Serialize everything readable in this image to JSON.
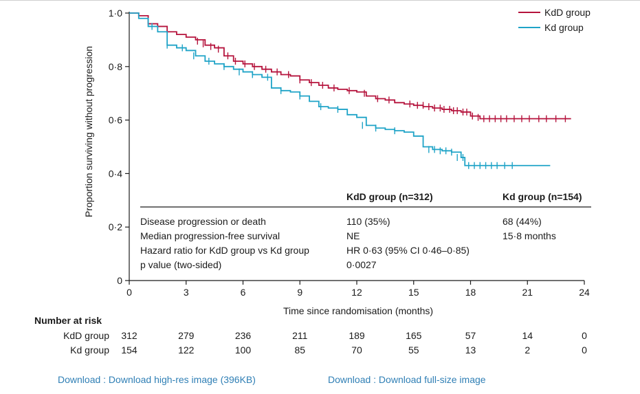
{
  "chart_data": {
    "type": "line",
    "xlabel": "Time since randomisation (months)",
    "ylabel": "Proportion surviving without progression",
    "xlim": [
      0,
      24
    ],
    "ylim": [
      0,
      1.0
    ],
    "xticks": [
      0,
      3,
      6,
      9,
      12,
      15,
      18,
      21,
      24
    ],
    "xtick_labels": [
      "0",
      "3",
      "6",
      "9",
      "12",
      "15",
      "18",
      "21",
      "24"
    ],
    "yticks": [
      0,
      0.2,
      0.4,
      0.6,
      0.8,
      1.0
    ],
    "ytick_labels": [
      "0",
      "0·2",
      "0·4",
      "0·6",
      "0·8",
      "1·0"
    ],
    "grid": false,
    "legend_position": "top-right",
    "series": [
      {
        "name": "KdD group",
        "color": "#b5133c",
        "x": [
          0,
          0.5,
          1.0,
          1.5,
          2.0,
          2.5,
          3.0,
          3.5,
          4.0,
          4.5,
          5.0,
          5.5,
          6.0,
          6.5,
          7.0,
          7.5,
          8.0,
          8.5,
          9.0,
          9.5,
          10.0,
          10.5,
          11.0,
          11.5,
          12.0,
          12.5,
          13.0,
          13.5,
          14.0,
          14.5,
          15.0,
          15.5,
          16.0,
          16.5,
          17.0,
          17.5,
          18.0,
          18.5,
          19.0,
          20.0,
          21.0,
          22.0,
          23.0,
          23.3
        ],
        "y": [
          1.0,
          0.99,
          0.96,
          0.95,
          0.93,
          0.92,
          0.91,
          0.9,
          0.88,
          0.87,
          0.84,
          0.82,
          0.81,
          0.8,
          0.79,
          0.78,
          0.77,
          0.765,
          0.75,
          0.74,
          0.73,
          0.72,
          0.715,
          0.71,
          0.705,
          0.69,
          0.68,
          0.675,
          0.665,
          0.66,
          0.655,
          0.65,
          0.645,
          0.64,
          0.635,
          0.63,
          0.615,
          0.605,
          0.605,
          0.605,
          0.605,
          0.605,
          0.605,
          0.605
        ],
        "censor_x": [
          3.6,
          3.9,
          4.3,
          4.7,
          5.2,
          5.6,
          6.1,
          6.6,
          7.2,
          7.8,
          8.4,
          9.0,
          9.6,
          10.2,
          10.8,
          11.6,
          12.4,
          13.1,
          13.7,
          14.8,
          15.2,
          15.5,
          15.8,
          16.1,
          16.4,
          16.6,
          16.9,
          17.1,
          17.3,
          17.6,
          17.8,
          18.1,
          18.4,
          18.7,
          19.0,
          19.3,
          19.6,
          19.9,
          20.3,
          20.7,
          21.1,
          21.6,
          22.0,
          22.5,
          23.0
        ],
        "censor_y": [
          0.895,
          0.885,
          0.875,
          0.865,
          0.84,
          0.82,
          0.81,
          0.8,
          0.79,
          0.78,
          0.77,
          0.75,
          0.74,
          0.73,
          0.72,
          0.71,
          0.7,
          0.68,
          0.675,
          0.66,
          0.655,
          0.655,
          0.65,
          0.645,
          0.645,
          0.64,
          0.64,
          0.635,
          0.635,
          0.63,
          0.63,
          0.615,
          0.61,
          0.605,
          0.605,
          0.605,
          0.605,
          0.605,
          0.605,
          0.605,
          0.605,
          0.605,
          0.605,
          0.605,
          0.605
        ]
      },
      {
        "name": "Kd group",
        "color": "#1ea3c7",
        "x": [
          0,
          0.5,
          1.0,
          1.5,
          2.0,
          2.5,
          3.0,
          3.5,
          4.0,
          4.5,
          5.0,
          5.5,
          6.0,
          6.5,
          7.0,
          7.5,
          8.0,
          8.5,
          9.0,
          9.5,
          10.0,
          10.5,
          11.0,
          11.5,
          12.0,
          12.5,
          13.0,
          13.5,
          14.0,
          14.5,
          15.0,
          15.5,
          16.0,
          16.5,
          17.0,
          17.5,
          17.7,
          18.0,
          19.0,
          20.0,
          21.0,
          22.2
        ],
        "y": [
          1.0,
          0.98,
          0.95,
          0.93,
          0.88,
          0.87,
          0.86,
          0.84,
          0.82,
          0.81,
          0.8,
          0.79,
          0.78,
          0.77,
          0.76,
          0.72,
          0.71,
          0.705,
          0.69,
          0.67,
          0.65,
          0.645,
          0.64,
          0.62,
          0.61,
          0.58,
          0.57,
          0.565,
          0.56,
          0.555,
          0.54,
          0.5,
          0.49,
          0.485,
          0.48,
          0.46,
          0.43,
          0.43,
          0.43,
          0.43,
          0.43,
          0.43
        ],
        "censor_x": [
          1.2,
          2.0,
          2.8,
          3.4,
          4.2,
          5.0,
          5.8,
          6.5,
          7.3,
          8.0,
          9.0,
          10.1,
          11.0,
          12.3,
          13.0,
          14.0,
          15.8,
          16.1,
          16.4,
          16.7,
          17.0,
          17.3,
          17.6,
          17.9,
          18.2,
          18.5,
          18.8,
          19.1,
          19.4,
          19.8,
          20.2
        ],
        "censor_y": [
          0.95,
          0.88,
          0.87,
          0.84,
          0.82,
          0.8,
          0.78,
          0.77,
          0.76,
          0.71,
          0.69,
          0.65,
          0.64,
          0.58,
          0.57,
          0.56,
          0.49,
          0.49,
          0.485,
          0.485,
          0.48,
          0.46,
          0.46,
          0.43,
          0.43,
          0.43,
          0.43,
          0.43,
          0.43,
          0.43,
          0.43
        ]
      }
    ],
    "table": {
      "headers": [
        "",
        "KdD group (n=312)",
        "Kd group (n=154)"
      ],
      "rows": [
        [
          "Disease progression or death",
          "110 (35%)",
          "68 (44%)"
        ],
        [
          "Median progression-free survival",
          "NE",
          "15·8 months"
        ],
        [
          "Hazard ratio for KdD group vs Kd group",
          "HR 0·63 (95%  CI 0·46–0·85)",
          ""
        ],
        [
          "p value (two-sided)",
          "0·0027",
          ""
        ]
      ]
    },
    "risk_table": {
      "title": "Number at risk",
      "rows": [
        {
          "label": "KdD group",
          "values": [
            "312",
            "279",
            "236",
            "211",
            "189",
            "165",
            "57",
            "14",
            "0"
          ]
        },
        {
          "label": "Kd group",
          "values": [
            "154",
            "122",
            "100",
            "85",
            "70",
            "55",
            "13",
            "2",
            "0"
          ]
        }
      ]
    }
  },
  "links": {
    "download_high_res": "Download : Download high-res image (396KB)",
    "download_full_size": "Download : Download full-size image"
  }
}
